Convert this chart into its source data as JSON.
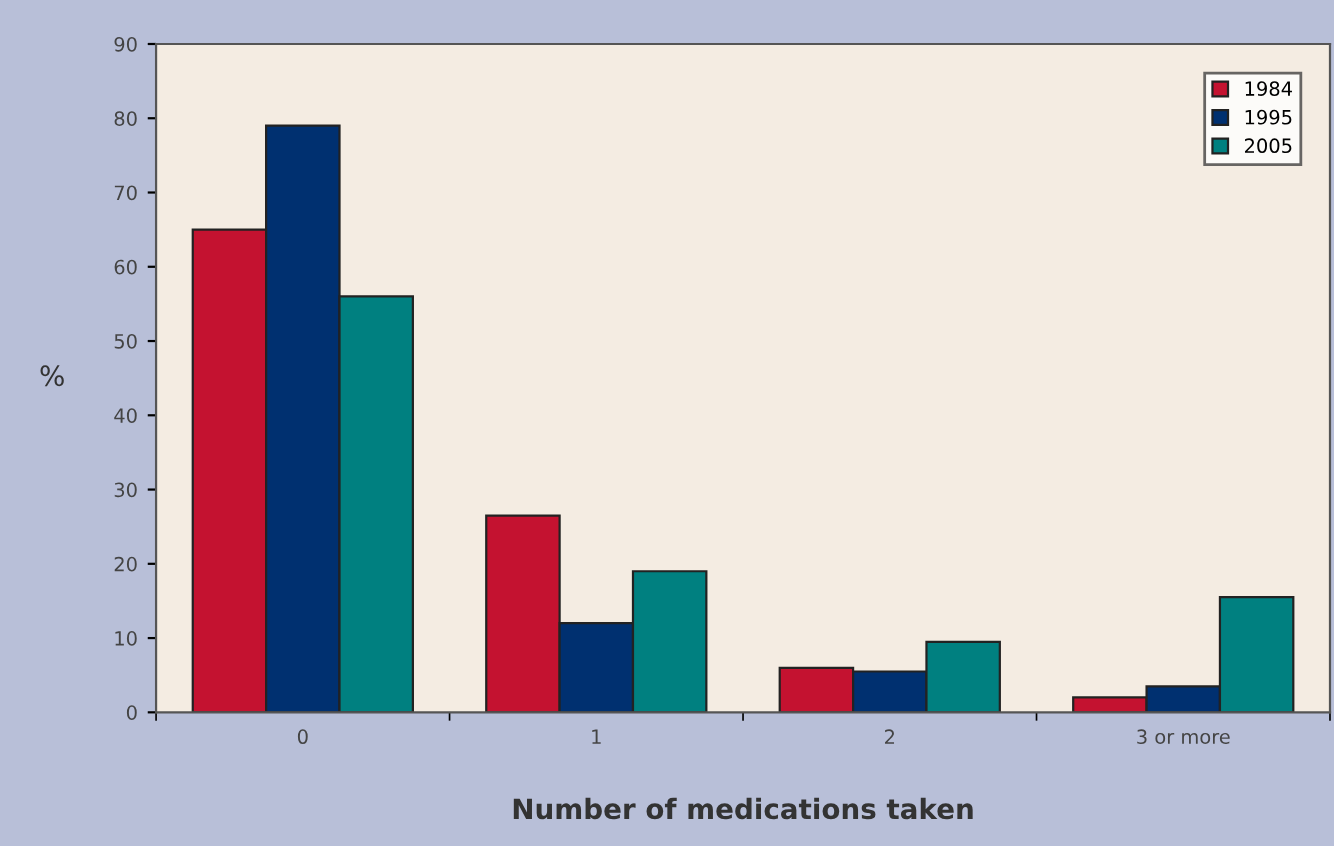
{
  "chart_data": {
    "type": "bar",
    "xlabel": "Number of medications taken",
    "ylabel": "%",
    "categories": [
      "0",
      "1",
      "2",
      "3 or more"
    ],
    "series": [
      {
        "name": "1984",
        "color": "#c41230",
        "values": [
          65,
          26.5,
          6,
          2
        ]
      },
      {
        "name": "1995",
        "color": "#003070",
        "values": [
          79,
          12,
          5.5,
          3.5
        ]
      },
      {
        "name": "2005",
        "color": "#008080",
        "values": [
          56,
          19,
          9.5,
          15.5
        ]
      }
    ],
    "ylim": [
      0,
      90
    ],
    "yticks": [
      0,
      10,
      20,
      30,
      40,
      50,
      60,
      70,
      80,
      90
    ],
    "grid": false,
    "legend": "top right"
  }
}
